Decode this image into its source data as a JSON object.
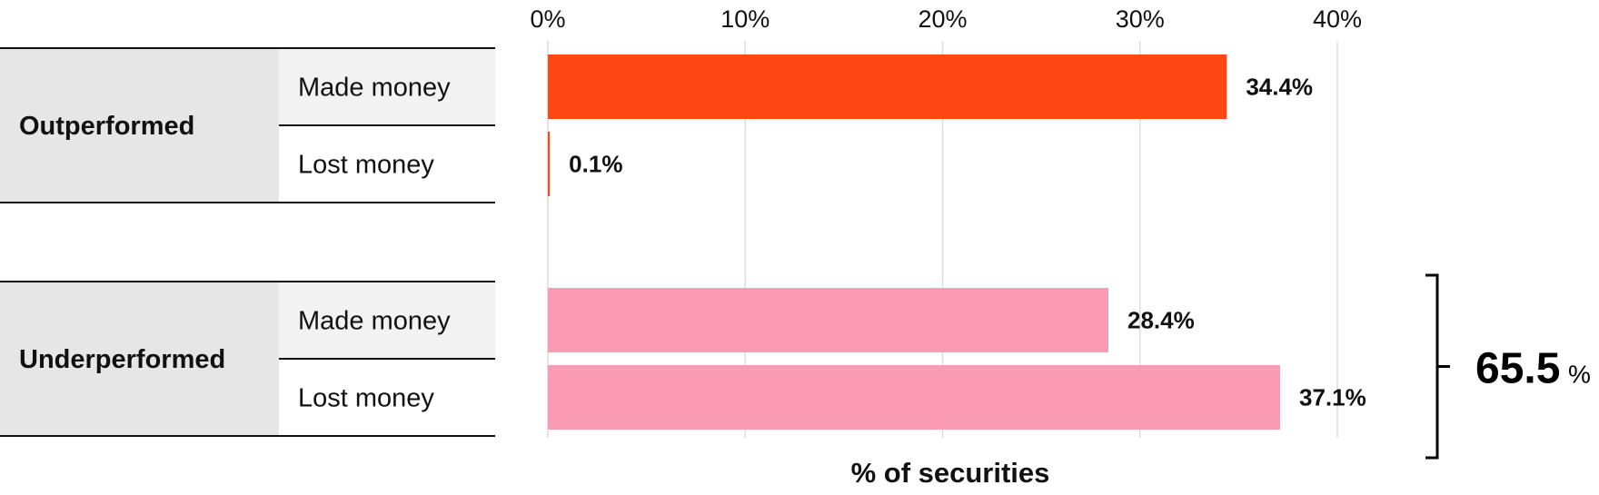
{
  "chart_data": {
    "type": "bar",
    "orientation": "horizontal",
    "xlabel": "% of securities",
    "xlim": [
      0,
      40
    ],
    "xticks": [
      0,
      10,
      20,
      30,
      40
    ],
    "tick_suffix": "%",
    "grid": true,
    "groups": [
      {
        "label": "Outperformed",
        "color": "#ff4714",
        "rows": [
          {
            "label": "Made money",
            "value": 34.4,
            "value_label": "34.4%"
          },
          {
            "label": "Lost money",
            "value": 0.1,
            "value_label": "0.1%"
          }
        ]
      },
      {
        "label": "Underperformed",
        "color": "#fb9bb3",
        "rows": [
          {
            "label": "Made money",
            "value": 28.4,
            "value_label": "28.4%"
          },
          {
            "label": "Lost money",
            "value": 37.1,
            "value_label": "37.1%"
          }
        ]
      }
    ],
    "annotation": {
      "group": "Underperformed",
      "value": "65.5",
      "unit": "%"
    }
  }
}
